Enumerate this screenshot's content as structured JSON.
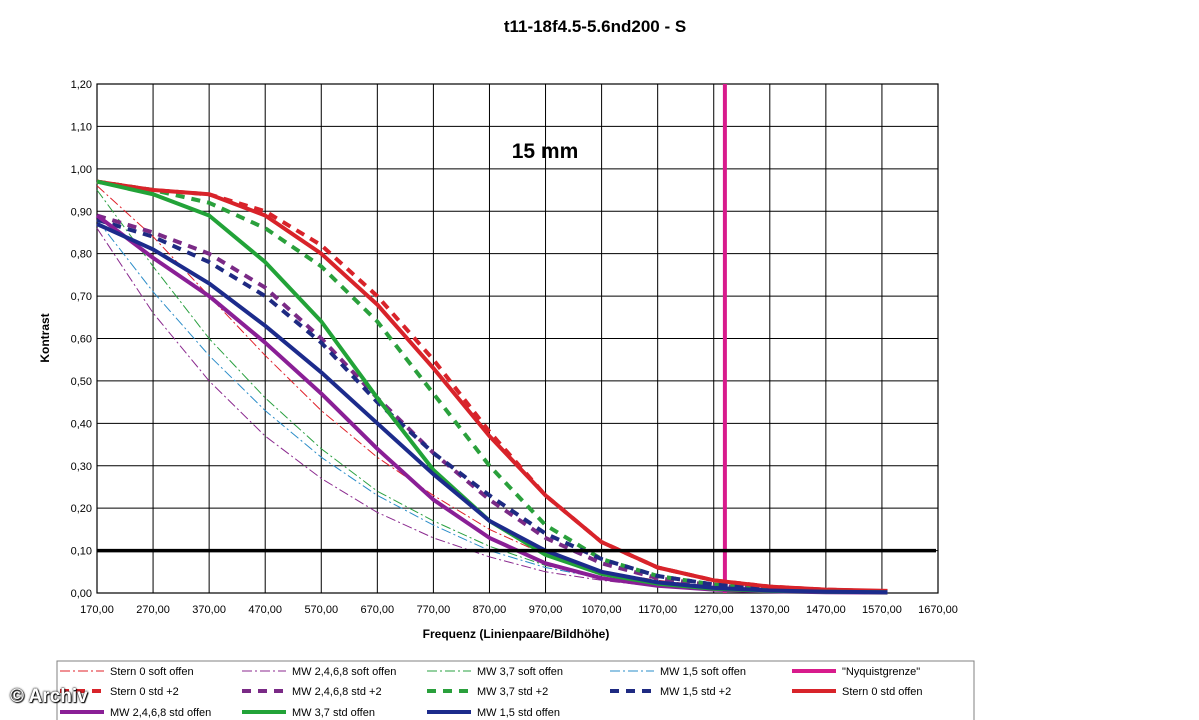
{
  "chart_data": {
    "type": "line",
    "title": "t11-18f4.5-5.6nd200 - S",
    "annotation": "15 mm",
    "xlabel": "Frequenz (Linienpaare/Bildhöhe)",
    "ylabel": "Kontrast",
    "xlim": [
      170,
      1670
    ],
    "ylim": [
      0,
      1.2
    ],
    "x_ticks": [
      "170,00",
      "270,00",
      "370,00",
      "470,00",
      "570,00",
      "670,00",
      "770,00",
      "870,00",
      "970,00",
      "1070,00",
      "1170,00",
      "1270,00",
      "1370,00",
      "1470,00",
      "1570,00",
      "1670,00"
    ],
    "y_ticks": [
      "0,00",
      "0,10",
      "0,20",
      "0,30",
      "0,40",
      "0,50",
      "0,60",
      "0,70",
      "0,80",
      "0,90",
      "1,00",
      "1,10",
      "1,20"
    ],
    "grid": true,
    "legend_position": "bottom",
    "reference_lines": [
      {
        "orientation": "horizontal",
        "value": 0.1,
        "color": "#000000"
      }
    ],
    "series": [
      {
        "name": "Stern 0 soft offen",
        "color": "#e0202a",
        "style": "dashdot",
        "width": 1,
        "x": [
          170,
          270,
          370,
          470,
          570,
          670,
          770,
          870,
          970,
          1070,
          1170,
          1270,
          1370,
          1470,
          1580
        ],
        "y": [
          0.96,
          0.84,
          0.7,
          0.56,
          0.43,
          0.32,
          0.23,
          0.15,
          0.09,
          0.05,
          0.03,
          0.015,
          0.01,
          0.005,
          0.003
        ]
      },
      {
        "name": "MW 2,4,6,8 soft offen",
        "color": "#8b2a8f",
        "style": "dashdot",
        "width": 1,
        "x": [
          170,
          270,
          370,
          470,
          570,
          670,
          770,
          870,
          970,
          1070,
          1170,
          1270,
          1370,
          1470,
          1580
        ],
        "y": [
          0.86,
          0.66,
          0.5,
          0.37,
          0.27,
          0.19,
          0.13,
          0.085,
          0.05,
          0.03,
          0.015,
          0.008,
          0.005,
          0.003,
          0.002
        ]
      },
      {
        "name": "MW 3,7 soft offen",
        "color": "#2aa040",
        "style": "dashdot",
        "width": 1,
        "x": [
          170,
          270,
          370,
          470,
          570,
          670,
          770,
          870,
          970,
          1070,
          1170,
          1270,
          1370,
          1470,
          1580
        ],
        "y": [
          0.95,
          0.77,
          0.6,
          0.46,
          0.34,
          0.24,
          0.17,
          0.11,
          0.065,
          0.035,
          0.02,
          0.01,
          0.006,
          0.004,
          0.002
        ]
      },
      {
        "name": "MW 1,5 soft offen",
        "color": "#2a8cc8",
        "style": "dashdot",
        "width": 1,
        "x": [
          170,
          270,
          370,
          470,
          570,
          670,
          770,
          870,
          970,
          1070,
          1170,
          1270,
          1370,
          1470,
          1580
        ],
        "y": [
          0.88,
          0.71,
          0.56,
          0.43,
          0.32,
          0.23,
          0.16,
          0.1,
          0.06,
          0.035,
          0.02,
          0.01,
          0.006,
          0.004,
          0.002
        ]
      },
      {
        "name": "\"Nyquistgrenze\"",
        "color": "#d81b8c",
        "style": "solid",
        "width": 4,
        "x": [
          1290,
          1290
        ],
        "y": [
          0,
          1.2
        ]
      },
      {
        "name": "Stern 0 std +2",
        "color": "#d8232a",
        "style": "dash",
        "width": 4,
        "x": [
          170,
          270,
          370,
          470,
          570,
          670,
          770,
          870,
          970,
          1070,
          1170,
          1270,
          1370,
          1470,
          1580
        ],
        "y": [
          0.97,
          0.95,
          0.94,
          0.9,
          0.82,
          0.7,
          0.55,
          0.38,
          0.23,
          0.12,
          0.06,
          0.03,
          0.015,
          0.008,
          0.004
        ]
      },
      {
        "name": "MW 2,4,6,8 std +2",
        "color": "#7a2a86",
        "style": "dash",
        "width": 4,
        "x": [
          170,
          270,
          370,
          470,
          570,
          670,
          770,
          870,
          970,
          1070,
          1170,
          1270,
          1370,
          1470,
          1580
        ],
        "y": [
          0.89,
          0.85,
          0.8,
          0.72,
          0.6,
          0.46,
          0.33,
          0.22,
          0.13,
          0.07,
          0.035,
          0.018,
          0.01,
          0.005,
          0.003
        ]
      },
      {
        "name": "MW 3,7 std +2",
        "color": "#2aa03c",
        "style": "dash",
        "width": 4,
        "x": [
          170,
          270,
          370,
          470,
          570,
          670,
          770,
          870,
          970,
          1070,
          1170,
          1270,
          1370,
          1470,
          1580
        ],
        "y": [
          0.97,
          0.95,
          0.92,
          0.86,
          0.77,
          0.64,
          0.47,
          0.3,
          0.16,
          0.08,
          0.04,
          0.02,
          0.01,
          0.006,
          0.003
        ]
      },
      {
        "name": "MW 1,5 std +2",
        "color": "#1e2a82",
        "style": "dash",
        "width": 4,
        "x": [
          170,
          270,
          370,
          470,
          570,
          670,
          770,
          870,
          970,
          1070,
          1170,
          1270,
          1370,
          1470,
          1580
        ],
        "y": [
          0.88,
          0.84,
          0.78,
          0.7,
          0.59,
          0.45,
          0.33,
          0.23,
          0.14,
          0.08,
          0.04,
          0.02,
          0.01,
          0.005,
          0.003
        ]
      },
      {
        "name": "Stern 0 std offen",
        "color": "#d8232a",
        "style": "solid",
        "width": 4,
        "x": [
          170,
          270,
          370,
          470,
          570,
          670,
          770,
          870,
          970,
          1070,
          1170,
          1270,
          1370,
          1470,
          1580
        ],
        "y": [
          0.97,
          0.95,
          0.94,
          0.89,
          0.8,
          0.68,
          0.53,
          0.37,
          0.23,
          0.12,
          0.06,
          0.03,
          0.015,
          0.008,
          0.005
        ]
      },
      {
        "name": "MW 2,4,6,8 std offen",
        "color": "#8a1f96",
        "style": "solid",
        "width": 4,
        "x": [
          170,
          270,
          370,
          470,
          570,
          670,
          770,
          870,
          970,
          1070,
          1170,
          1270,
          1370,
          1470,
          1580
        ],
        "y": [
          0.89,
          0.79,
          0.7,
          0.59,
          0.47,
          0.34,
          0.22,
          0.13,
          0.07,
          0.035,
          0.017,
          0.008,
          0.004,
          0.002,
          0.001
        ]
      },
      {
        "name": "MW 3,7 std offen",
        "color": "#22a338",
        "style": "solid",
        "width": 4,
        "x": [
          170,
          270,
          370,
          470,
          570,
          670,
          770,
          870,
          970,
          1070,
          1170,
          1270,
          1370,
          1470,
          1580
        ],
        "y": [
          0.97,
          0.94,
          0.89,
          0.78,
          0.64,
          0.46,
          0.29,
          0.17,
          0.09,
          0.045,
          0.022,
          0.01,
          0.005,
          0.003,
          0.002
        ]
      },
      {
        "name": "MW 1,5 std offen",
        "color": "#1c2b8c",
        "style": "solid",
        "width": 4,
        "x": [
          170,
          270,
          370,
          470,
          570,
          670,
          770,
          870,
          970,
          1070,
          1170,
          1270,
          1370,
          1470,
          1580
        ],
        "y": [
          0.87,
          0.81,
          0.73,
          0.63,
          0.52,
          0.4,
          0.28,
          0.17,
          0.1,
          0.05,
          0.025,
          0.012,
          0.006,
          0.003,
          0.002
        ]
      }
    ]
  },
  "watermark": "© Archiv"
}
